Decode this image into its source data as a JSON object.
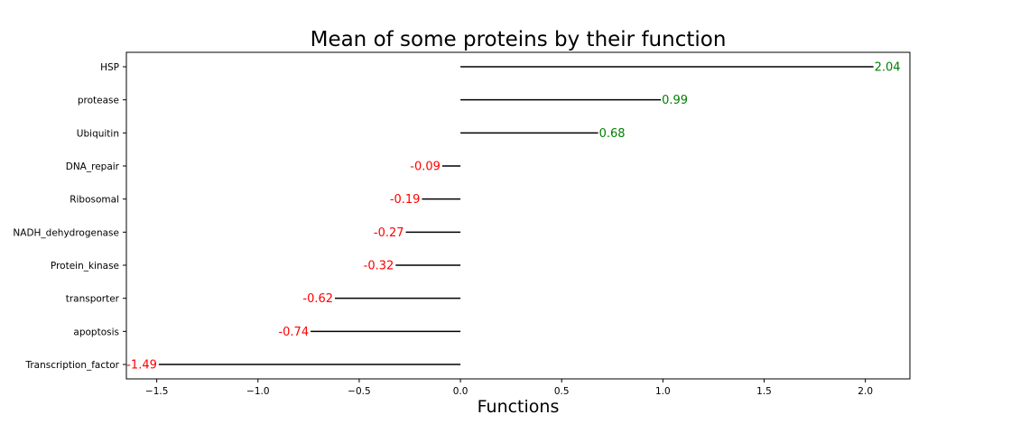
{
  "chart_data": {
    "type": "lollipop-bar",
    "title": "Mean of some proteins by their function",
    "xlabel": "Functions",
    "ylabel": "",
    "xlim": [
      -1.65,
      2.22
    ],
    "xticks": [
      -1.5,
      -1.0,
      -0.5,
      0.0,
      0.5,
      1.0,
      1.5,
      2.0
    ],
    "xtick_labels": [
      "−1.5",
      "−1.0",
      "−0.5",
      "0.0",
      "0.5",
      "1.0",
      "1.5",
      "2.0"
    ],
    "categories": [
      "HSP",
      "protease",
      "Ubiquitin",
      "DNA_repair",
      "Ribosomal",
      "NADH_dehydrogenase",
      "Protein_kinase",
      "transporter",
      "apoptosis",
      "Transcription_factor"
    ],
    "values": [
      2.04,
      0.99,
      0.68,
      -0.09,
      -0.19,
      -0.27,
      -0.32,
      -0.62,
      -0.74,
      -1.49
    ],
    "value_labels": [
      "2.04",
      "0.99",
      "0.68",
      "-0.09",
      "-0.19",
      "-0.27",
      "-0.32",
      "-0.62",
      "-0.74",
      "-1.49"
    ],
    "colors": {
      "positive": "#008000",
      "negative": "#ff0000",
      "line": "#000000"
    },
    "grid": false
  }
}
